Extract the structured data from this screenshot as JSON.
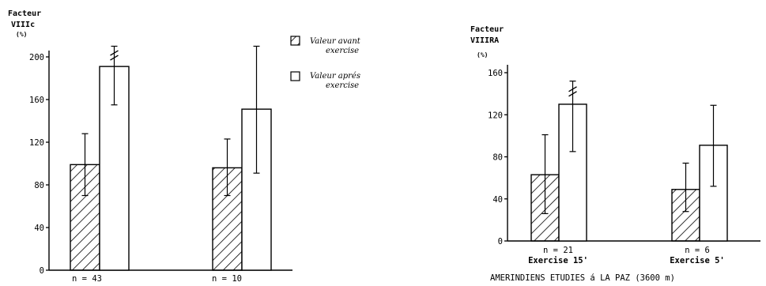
{
  "chart_data": [
    {
      "type": "bar",
      "ylabel": [
        "Facteur",
        "VIIIc",
        "(%)"
      ],
      "ylim": [
        0,
        200
      ],
      "yticks": [
        0,
        40,
        80,
        120,
        160,
        200
      ],
      "categories": [
        "n = 43",
        "n = 10"
      ],
      "series": [
        {
          "name": "Valeur avant exercise",
          "pattern": "hatched",
          "values": [
            99,
            96
          ],
          "error_upper": [
            128,
            123
          ],
          "error_lower": [
            70,
            70
          ]
        },
        {
          "name": "Valeur aprés exercise",
          "pattern": "open",
          "values": [
            191,
            151
          ],
          "error_upper": [
            210,
            210
          ],
          "error_lower": [
            155,
            91
          ]
        }
      ],
      "significance_marks": [
        {
          "category": 0,
          "series": 1,
          "symbol": "≠"
        }
      ],
      "legend_position": "right"
    },
    {
      "type": "bar",
      "ylabel": [
        "Facteur",
        "VIIIRA",
        "(%)"
      ],
      "ylim": [
        0,
        160
      ],
      "yticks": [
        0,
        40,
        80,
        120,
        160
      ],
      "categories": [
        [
          "n = 21",
          "Exercise 15'"
        ],
        [
          "n = 6",
          "Exercise 5'"
        ]
      ],
      "xlabel": "AMERINDIENS ETUDIES á LA PAZ (3600 m)",
      "series": [
        {
          "pattern": "hatched",
          "values": [
            63,
            49
          ],
          "error_upper": [
            101,
            74
          ],
          "error_lower": [
            26,
            28
          ]
        },
        {
          "pattern": "open",
          "values": [
            130,
            91
          ],
          "error_upper": [
            152,
            129
          ],
          "error_lower": [
            85,
            52
          ]
        }
      ],
      "significance_marks": [
        {
          "category": 0,
          "series": 1,
          "symbol": "≠"
        }
      ]
    }
  ],
  "legend": [
    {
      "pattern": "hatched",
      "lines": [
        "Valeur avant",
        "exercise"
      ]
    },
    {
      "pattern": "open",
      "lines": [
        "Valeur aprés",
        "exercise"
      ]
    }
  ]
}
